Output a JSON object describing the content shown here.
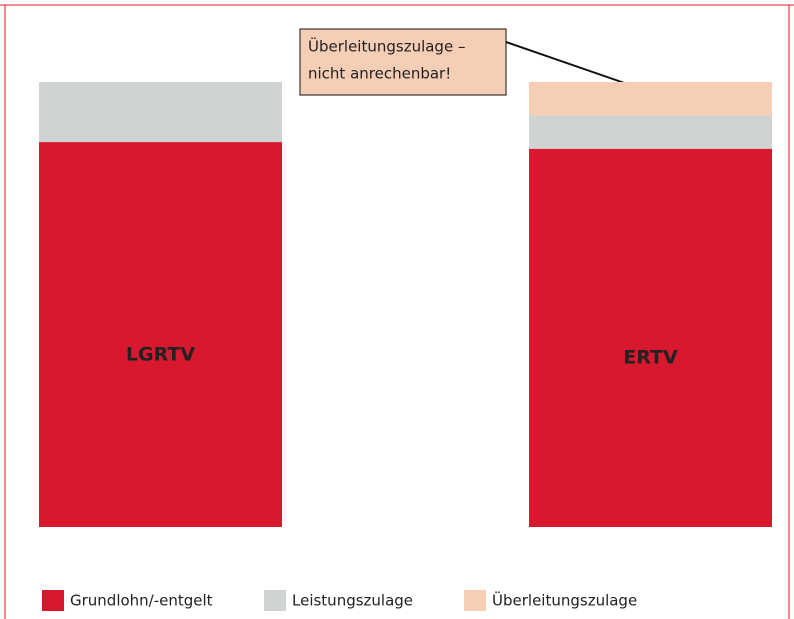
{
  "chart_data": {
    "type": "stacked_bar",
    "categories": [
      "LGRTV",
      "ERTV"
    ],
    "series": [
      {
        "name": "Grundlohn/-entgelt",
        "color": "#d7182f",
        "values": [
          86.5,
          85
        ]
      },
      {
        "name": "Leistungszulage",
        "color": "#d0d3d4",
        "values": [
          13.5,
          7.5
        ]
      },
      {
        "name": "Überleitungszulage",
        "color": "#f6cdb5",
        "values": [
          null,
          7.5
        ]
      }
    ],
    "ylim": [
      0,
      100
    ],
    "annotation": [
      "Überleitungszulage –",
      "nicht anrechenbar!"
    ]
  }
}
